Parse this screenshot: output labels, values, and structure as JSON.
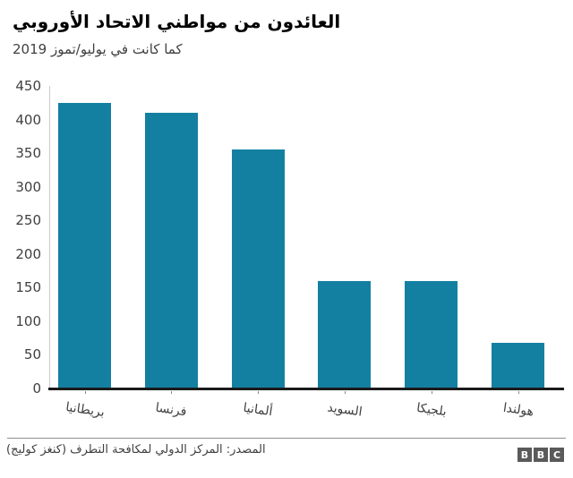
{
  "header": {
    "title": "العائدون من مواطني الاتحاد الأوروبي",
    "subtitle": "كما كانت في يوليو/تموز 2019"
  },
  "chart_data": {
    "type": "bar",
    "categories": [
      "بريطانيا",
      "فرنسا",
      "ألمانيا",
      "السويد",
      "بلجيكا",
      "هولندا"
    ],
    "values": [
      425,
      410,
      356,
      160,
      160,
      68
    ],
    "title": "العائدون من مواطني الاتحاد الأوروبي",
    "subtitle": "كما كانت في يوليو/تموز 2019",
    "xlabel": "",
    "ylabel": "",
    "ylim": [
      0,
      450
    ],
    "yticks": [
      0,
      50,
      100,
      150,
      200,
      250,
      300,
      350,
      400,
      450
    ],
    "bar_color": "#1380A1",
    "grid": false,
    "legend": false
  },
  "footer": {
    "source": "المصدر: المركز الدولي لمكافحة التطرف (كنغز كوليج)",
    "logo_letters": [
      "B",
      "B",
      "C"
    ]
  }
}
